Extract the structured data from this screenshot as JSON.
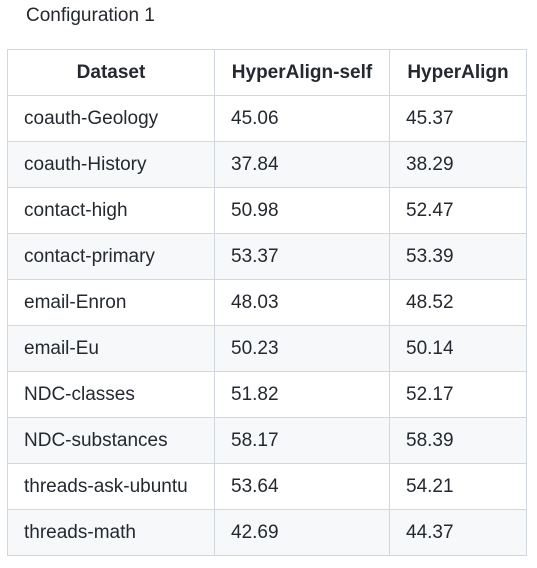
{
  "caption": "Configuration 1",
  "table": {
    "columns": [
      "Dataset",
      "HyperAlign-self",
      "HyperAlign"
    ],
    "rows": [
      [
        "coauth-Geology",
        "45.06",
        "45.37"
      ],
      [
        "coauth-History",
        "37.84",
        "38.29"
      ],
      [
        "contact-high",
        "50.98",
        "52.47"
      ],
      [
        "contact-primary",
        "53.37",
        "53.39"
      ],
      [
        "email-Enron",
        "48.03",
        "48.52"
      ],
      [
        "email-Eu",
        "50.23",
        "50.14"
      ],
      [
        "NDC-classes",
        "51.82",
        "52.17"
      ],
      [
        "NDC-substances",
        "58.17",
        "58.39"
      ],
      [
        "threads-ask-ubuntu",
        "53.64",
        "54.21"
      ],
      [
        "threads-math",
        "42.69",
        "44.37"
      ]
    ]
  }
}
